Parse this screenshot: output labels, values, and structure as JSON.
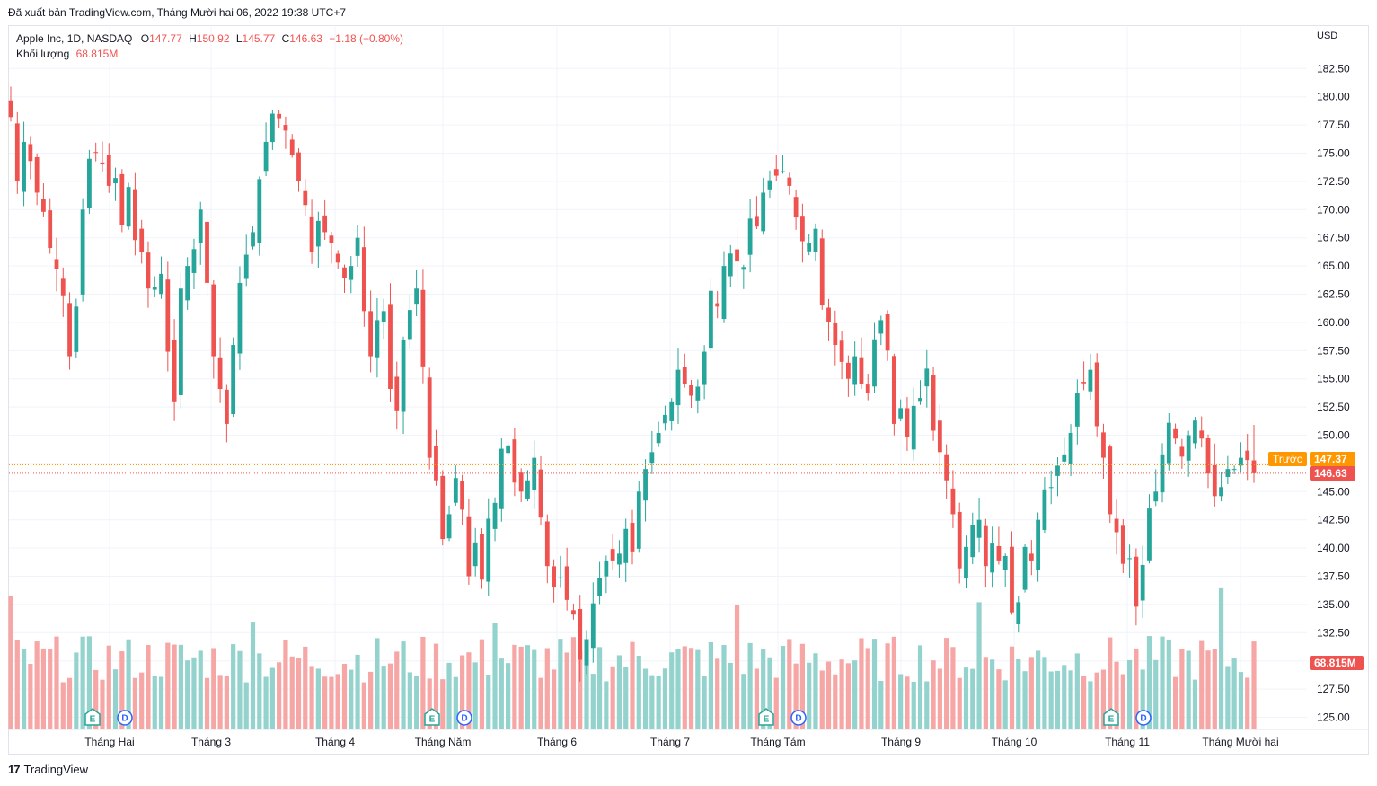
{
  "header": {
    "published": "Đã xuất bản TradingView.com, Tháng Mười hai 06, 2022 19:38 UTC+7"
  },
  "legend": {
    "symbol": "Apple Inc, 1D, NASDAQ",
    "open_label": "O",
    "open": "147.77",
    "high_label": "H",
    "high": "150.92",
    "low_label": "L",
    "low": "145.77",
    "close_label": "C",
    "close": "146.63",
    "change": "−1.18 (−0.80%)",
    "volume_label": "Khối lượng",
    "volume": "68.815M"
  },
  "axis": {
    "currency": "USD"
  },
  "price_tags": {
    "previous_label": "Trước",
    "previous": "147.37",
    "last": "146.63",
    "volume": "68.815M"
  },
  "footer": {
    "brand": "TradingView",
    "logo": "17"
  },
  "colors": {
    "up": "#26a69a",
    "down": "#ef5350",
    "up_volume": "#94d3cd",
    "down_volume": "#f5a6a5",
    "accent_prev": "#ff9800"
  },
  "chart_data": {
    "type": "candlestick",
    "symbol": "Apple Inc",
    "interval": "1D",
    "exchange": "NASDAQ",
    "ylim": [
      124,
      184
    ],
    "y_ticks": [
      "125.00",
      "127.50",
      "130.00",
      "132.50",
      "135.00",
      "137.50",
      "140.00",
      "142.50",
      "145.00",
      "147.50",
      "150.00",
      "152.50",
      "155.00",
      "157.50",
      "160.00",
      "162.50",
      "165.00",
      "167.50",
      "170.00",
      "172.50",
      "175.00",
      "177.50",
      "180.00",
      "182.50"
    ],
    "x_ticks": [
      "Tháng Hai",
      "Tháng 3",
      "Tháng 4",
      "Tháng Năm",
      "Tháng 6",
      "Tháng 7",
      "Tháng Tám",
      "Tháng 9",
      "Tháng 10",
      "Tháng 11",
      "Tháng Mười hai"
    ],
    "grid": true,
    "events": [
      {
        "type": "E",
        "month_index": 0
      },
      {
        "type": "D",
        "month_index": 0
      },
      {
        "type": "E",
        "month_index": 3
      },
      {
        "type": "D",
        "month_index": 3
      },
      {
        "type": "E",
        "month_index": 6
      },
      {
        "type": "D",
        "month_index": 6
      },
      {
        "type": "E",
        "month_index": 9
      },
      {
        "type": "D",
        "month_index": 9
      }
    ],
    "close_path": [
      178.2,
      172.5,
      176.0,
      174.3,
      171.5,
      169.8,
      166.6,
      164.7,
      162.4,
      157.0,
      161.4,
      170.0,
      174.5,
      175.1,
      174.0,
      172.1,
      172.8,
      168.6,
      172.0,
      167.3,
      166.2,
      163.0,
      163.1,
      164.3,
      157.4,
      153.0,
      163.0,
      165.0,
      166.5,
      170.0,
      163.5,
      157.0,
      154.1,
      151.0,
      158.0,
      163.5,
      166.0,
      168.0,
      172.7,
      176.0,
      178.5,
      178.1,
      177.0,
      174.8,
      172.5,
      170.4,
      166.2,
      169.0,
      168.0,
      167.0,
      165.3,
      163.9,
      165.0,
      167.5,
      161.0,
      157.0,
      160.2,
      161.0,
      154.1,
      152.2,
      158.4,
      161.1,
      163.0,
      156.1,
      148.0,
      146.0,
      140.8,
      143.0,
      146.2,
      143.4,
      137.5,
      140.5,
      137.2,
      142.6,
      144.0,
      148.8,
      149.1,
      145.8,
      145.0,
      146.0,
      148.0,
      142.7,
      138.4,
      136.5,
      137.4,
      135.4,
      134.1,
      130.1,
      131.9,
      135.1,
      137.3,
      138.9,
      138.9,
      139.5,
      141.7,
      139.7,
      145.0,
      147.0,
      148.5,
      150.2,
      151.8,
      153.0,
      155.8,
      154.5,
      153.5,
      154.3,
      157.4,
      162.8,
      161.4,
      165.0,
      166.1,
      165.4,
      164.9,
      169.2,
      168.5,
      171.5,
      172.6,
      173.0,
      173.4,
      172.1,
      169.3,
      167.2,
      167.0,
      168.3,
      161.5,
      160.0,
      158.0,
      156.5,
      155.0,
      157.0,
      154.5,
      153.7,
      158.5,
      160.2,
      157.5,
      151.0,
      152.4,
      149.8,
      152.6,
      153.3,
      155.9,
      150.4,
      148.5,
      146.0,
      143.0,
      138.2,
      140.1,
      142.0,
      142.5,
      138.4,
      140.4,
      138.9,
      139.3,
      134.3,
      135.2,
      140.1,
      138.9,
      142.5,
      145.2,
      145.4,
      147.3,
      148.3,
      150.2,
      153.7,
      154.6,
      155.8,
      150.8,
      148.0,
      143.0,
      141.4,
      138.6,
      139.1,
      134.8,
      138.5,
      143.5,
      145.0,
      148.3,
      151.1,
      149.7,
      148.1,
      150.0,
      151.3,
      149.7,
      146.6,
      144.6,
      145.4,
      147.0,
      147.0,
      148.0,
      147.8,
      146.6
    ]
  }
}
